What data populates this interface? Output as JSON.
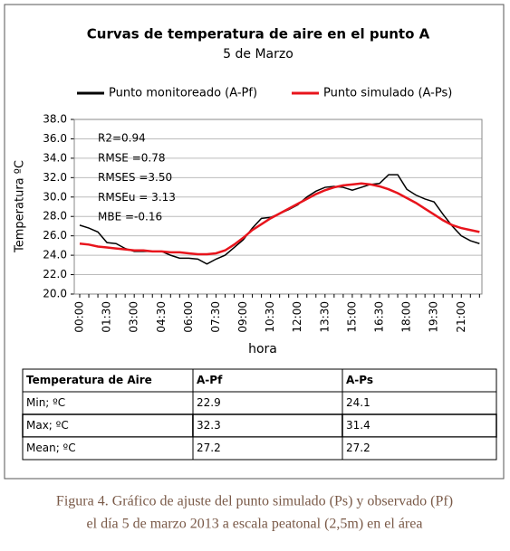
{
  "chart_data": {
    "type": "line",
    "title": "Curvas de temperatura de aire en el punto A",
    "subtitle": "5 de Marzo",
    "x_label": "hora",
    "y_label": "Temperatura ºC",
    "categories": [
      "00:00",
      null,
      null,
      "01:30",
      null,
      null,
      "03:00",
      null,
      null,
      "04:30",
      null,
      null,
      "06:00",
      null,
      null,
      "07:30",
      null,
      null,
      "09:00",
      null,
      null,
      "10:30",
      null,
      null,
      "12:00",
      null,
      null,
      "13:30",
      null,
      null,
      "15:00",
      null,
      null,
      "16:30",
      null,
      null,
      "18:00",
      null,
      null,
      "19:30",
      null,
      null,
      "21:00",
      null,
      null
    ],
    "series": [
      {
        "name": "Punto monitoreado (A-Pf)",
        "color": "#000000",
        "values": [
          27.1,
          26.8,
          26.4,
          25.3,
          25.2,
          24.7,
          24.4,
          24.4,
          24.4,
          24.4,
          24.0,
          23.7,
          23.7,
          23.6,
          23.1,
          23.6,
          24.0,
          24.8,
          25.6,
          26.8,
          27.8,
          27.9,
          28.3,
          28.7,
          29.2,
          30.0,
          30.6,
          31.0,
          31.1,
          31.0,
          30.7,
          31.0,
          31.3,
          31.4,
          32.3,
          32.3,
          30.8,
          30.2,
          29.8,
          29.5,
          28.2,
          27.0,
          26.0,
          25.5,
          25.2
        ]
      },
      {
        "name": "Punto simulado (A-Ps)",
        "color": "#e8141c",
        "values": [
          25.2,
          25.1,
          24.9,
          24.8,
          24.7,
          24.6,
          24.5,
          24.5,
          24.4,
          24.4,
          24.3,
          24.3,
          24.2,
          24.1,
          24.1,
          24.2,
          24.5,
          25.1,
          25.8,
          26.6,
          27.2,
          27.8,
          28.3,
          28.8,
          29.3,
          29.8,
          30.3,
          30.7,
          31.0,
          31.2,
          31.3,
          31.4,
          31.3,
          31.1,
          30.8,
          30.4,
          29.9,
          29.4,
          28.8,
          28.2,
          27.6,
          27.1,
          26.8,
          26.6,
          26.4
        ]
      }
    ],
    "ylim": [
      20,
      38
    ],
    "yticks": [
      {
        "value": 20,
        "label": "20.0"
      },
      {
        "value": 22,
        "label": "22.0"
      },
      {
        "value": 24,
        "label": "24.0"
      },
      {
        "value": 26,
        "label": "26.0"
      },
      {
        "value": 28,
        "label": "28.0"
      },
      {
        "value": 30,
        "label": "30.0"
      },
      {
        "value": 32,
        "label": "32.0"
      },
      {
        "value": 34,
        "label": "34.0"
      },
      {
        "value": 36,
        "label": "36.0"
      },
      {
        "value": 38,
        "label": "38.0"
      }
    ],
    "grid": true,
    "legend": "top",
    "annotations": [
      "R2=0.94",
      "RMSE =0.78",
      "RMSES =3.50",
      "RMSEu = 3.13",
      "MBE =-0.16"
    ]
  },
  "table": {
    "header": [
      "Temperatura de Aire",
      "A-Pf",
      "A-Ps"
    ],
    "rows": [
      [
        "Min; ºC",
        22.9,
        24.1
      ],
      [
        "Max; ºC",
        32.3,
        31.4
      ],
      [
        "Mean; ºC",
        27.2,
        27.2
      ]
    ]
  },
  "caption": [
    "Figura 4. Gráfico de ajuste del punto simulado (Ps) y observado (Pf)",
    "el día 5 de marzo 2013 a escala peatonal (2,5m) en el área"
  ]
}
